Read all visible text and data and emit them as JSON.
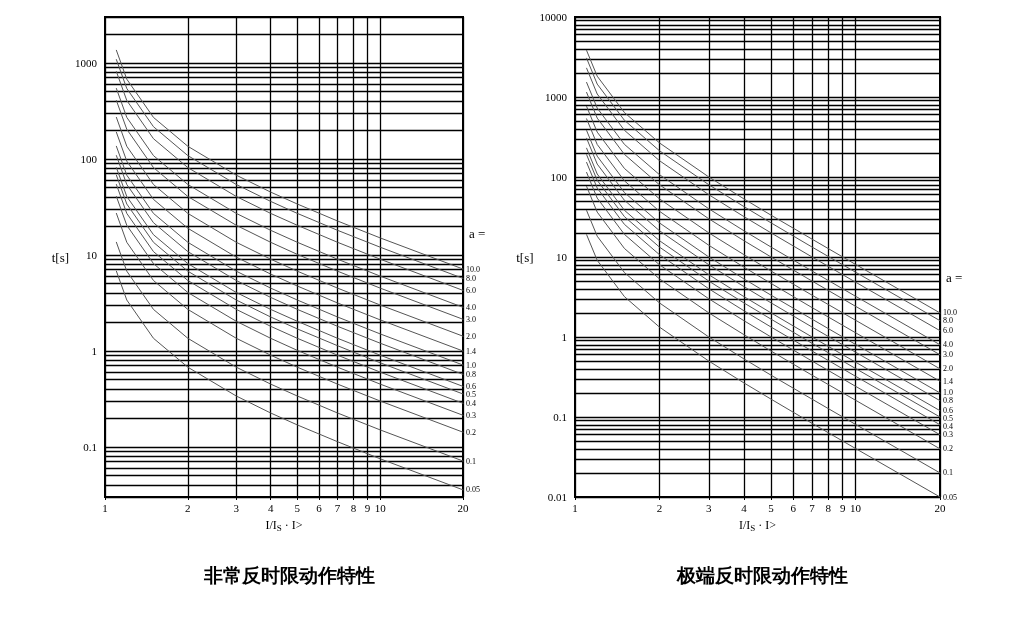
{
  "chart_data": [
    {
      "type": "line",
      "title": "非常反时限动作特性",
      "xlabel": "I/I$_{S}$ · I>",
      "ylabel": "t[s]",
      "legend_title": "a =",
      "log": "xy",
      "grid": true,
      "marker": "none",
      "line_style": "solid",
      "xlim": [
        1,
        20
      ],
      "ylim": [
        0.03,
        3000
      ],
      "xticks": [
        1,
        2,
        3,
        4,
        5,
        6,
        7,
        8,
        9,
        10,
        20
      ],
      "yticks": [
        {
          "value": 0.03,
          "label": null
        },
        {
          "value": 0.04,
          "label": null
        },
        {
          "value": 0.05,
          "label": null
        },
        {
          "value": 0.06,
          "label": null
        },
        {
          "value": 0.07,
          "label": null
        },
        {
          "value": 0.08,
          "label": null
        },
        {
          "value": 0.09,
          "label": null
        },
        {
          "value": 0.1,
          "label": "0.1"
        },
        {
          "value": 0.2,
          "label": null
        },
        {
          "value": 0.3,
          "label": null
        },
        {
          "value": 0.4,
          "label": null
        },
        {
          "value": 0.5,
          "label": null
        },
        {
          "value": 0.6,
          "label": null
        },
        {
          "value": 0.7,
          "label": null
        },
        {
          "value": 0.8,
          "label": null
        },
        {
          "value": 0.9,
          "label": null
        },
        1,
        {
          "value": 2,
          "label": null
        },
        {
          "value": 3,
          "label": null
        },
        {
          "value": 4,
          "label": null
        },
        {
          "value": 5,
          "label": null
        },
        {
          "value": 6,
          "label": null
        },
        {
          "value": 7,
          "label": null
        },
        {
          "value": 8,
          "label": null
        },
        {
          "value": 9,
          "label": null
        },
        10,
        {
          "value": 20,
          "label": null
        },
        {
          "value": 30,
          "label": null
        },
        {
          "value": 40,
          "label": null
        },
        {
          "value": 50,
          "label": null
        },
        {
          "value": 60,
          "label": null
        },
        {
          "value": 70,
          "label": null
        },
        {
          "value": 80,
          "label": null
        },
        {
          "value": 90,
          "label": null
        },
        100,
        {
          "value": 200,
          "label": null
        },
        {
          "value": 300,
          "label": null
        },
        {
          "value": 400,
          "label": null
        },
        {
          "value": 500,
          "label": null
        },
        {
          "value": 600,
          "label": null
        },
        {
          "value": 700,
          "label": null
        },
        {
          "value": 800,
          "label": null
        },
        {
          "value": 900,
          "label": null
        },
        1000,
        {
          "value": 2000,
          "label": null
        },
        {
          "value": 3000,
          "label": null
        }
      ],
      "x": [
        1.1,
        1.2,
        1.5,
        2,
        3,
        4,
        5,
        7,
        10,
        20
      ],
      "series": [
        {
          "name": "10.0",
          "color": "#555555",
          "values": [
            1350,
            675,
            270,
            135,
            67.5,
            45,
            33.8,
            22.5,
            15,
            7.11
          ]
        },
        {
          "name": "8.0",
          "color": "#555555",
          "values": [
            1080,
            540,
            216,
            108,
            54,
            36,
            27,
            18,
            12,
            5.68
          ]
        },
        {
          "name": "6.0",
          "color": "#555555",
          "values": [
            810,
            405,
            162,
            81,
            40.5,
            27,
            20.3,
            13.5,
            9,
            4.26
          ]
        },
        {
          "name": "4.0",
          "color": "#555555",
          "values": [
            540,
            270,
            108,
            54,
            27,
            18,
            13.5,
            9,
            6,
            2.84
          ]
        },
        {
          "name": "3.0",
          "color": "#555555",
          "values": [
            405,
            203,
            81,
            40.5,
            20.3,
            13.5,
            10.1,
            6.75,
            4.5,
            2.13
          ]
        },
        {
          "name": "2.0",
          "color": "#555555",
          "values": [
            270,
            135,
            54,
            27,
            13.5,
            9,
            6.75,
            4.5,
            3,
            1.42
          ]
        },
        {
          "name": "1.4",
          "color": "#555555",
          "values": [
            189,
            94.5,
            37.8,
            18.9,
            9.45,
            6.3,
            4.73,
            3.15,
            2.1,
            0.995
          ]
        },
        {
          "name": "1.0",
          "color": "#555555",
          "values": [
            135,
            67.5,
            27,
            13.5,
            6.75,
            4.5,
            3.38,
            2.25,
            1.5,
            0.711
          ]
        },
        {
          "name": "0.8",
          "color": "#555555",
          "values": [
            108,
            54,
            21.6,
            10.8,
            5.4,
            3.6,
            2.7,
            1.8,
            1.2,
            0.568
          ]
        },
        {
          "name": "0.6",
          "color": "#555555",
          "values": [
            81,
            40.5,
            16.2,
            8.1,
            4.05,
            2.7,
            2.03,
            1.35,
            0.9,
            0.426
          ]
        },
        {
          "name": "0.5",
          "color": "#555555",
          "values": [
            67.5,
            33.8,
            13.5,
            6.75,
            3.38,
            2.25,
            1.69,
            1.13,
            0.75,
            0.355
          ]
        },
        {
          "name": "0.4",
          "color": "#555555",
          "values": [
            54,
            27,
            10.8,
            5.4,
            2.7,
            1.8,
            1.35,
            0.9,
            0.6,
            0.284
          ]
        },
        {
          "name": "0.3",
          "color": "#555555",
          "values": [
            40.5,
            20.3,
            8.1,
            4.05,
            2.03,
            1.35,
            1.01,
            0.675,
            0.45,
            0.213
          ]
        },
        {
          "name": "0.2",
          "color": "#555555",
          "values": [
            27,
            13.5,
            5.4,
            2.7,
            1.35,
            0.9,
            0.675,
            0.45,
            0.3,
            0.142
          ]
        },
        {
          "name": "0.1",
          "color": "#555555",
          "values": [
            13.5,
            6.75,
            2.7,
            1.35,
            0.675,
            0.45,
            0.338,
            0.225,
            0.15,
            0.0711
          ]
        },
        {
          "name": "0.05",
          "color": "#555555",
          "values": [
            6.75,
            3.38,
            1.35,
            0.675,
            0.338,
            0.225,
            0.169,
            0.113,
            0.075,
            0.0356
          ]
        }
      ]
    },
    {
      "type": "line",
      "title": "极端反时限动作特性",
      "xlabel": "I/I$_{S}$ · I>",
      "ylabel": "t[s]",
      "legend_title": "a =",
      "log": "xy",
      "grid": true,
      "marker": "none",
      "line_style": "solid",
      "xlim": [
        1,
        20
      ],
      "ylim": [
        0.01,
        10000
      ],
      "xticks": [
        1,
        2,
        3,
        4,
        5,
        6,
        7,
        8,
        9,
        10,
        20
      ],
      "yticks": [
        {
          "value": 0.01,
          "label": "0.01"
        },
        {
          "value": 0.02,
          "label": null
        },
        {
          "value": 0.03,
          "label": null
        },
        {
          "value": 0.04,
          "label": null
        },
        {
          "value": 0.05,
          "label": null
        },
        {
          "value": 0.06,
          "label": null
        },
        {
          "value": 0.07,
          "label": null
        },
        {
          "value": 0.08,
          "label": null
        },
        {
          "value": 0.09,
          "label": null
        },
        {
          "value": 0.1,
          "label": "0.1"
        },
        {
          "value": 0.2,
          "label": null
        },
        {
          "value": 0.3,
          "label": null
        },
        {
          "value": 0.4,
          "label": null
        },
        {
          "value": 0.5,
          "label": null
        },
        {
          "value": 0.6,
          "label": null
        },
        {
          "value": 0.7,
          "label": null
        },
        {
          "value": 0.8,
          "label": null
        },
        {
          "value": 0.9,
          "label": null
        },
        1,
        {
          "value": 2,
          "label": null
        },
        {
          "value": 3,
          "label": null
        },
        {
          "value": 4,
          "label": null
        },
        {
          "value": 5,
          "label": null
        },
        {
          "value": 6,
          "label": null
        },
        {
          "value": 7,
          "label": null
        },
        {
          "value": 8,
          "label": null
        },
        {
          "value": 9,
          "label": null
        },
        10,
        {
          "value": 20,
          "label": null
        },
        {
          "value": 30,
          "label": null
        },
        {
          "value": 40,
          "label": null
        },
        {
          "value": 50,
          "label": null
        },
        {
          "value": 60,
          "label": null
        },
        {
          "value": 70,
          "label": null
        },
        {
          "value": 80,
          "label": null
        },
        {
          "value": 90,
          "label": null
        },
        100,
        {
          "value": 200,
          "label": null
        },
        {
          "value": 300,
          "label": null
        },
        {
          "value": 400,
          "label": null
        },
        {
          "value": 500,
          "label": null
        },
        {
          "value": 600,
          "label": null
        },
        {
          "value": 700,
          "label": null
        },
        {
          "value": 800,
          "label": null
        },
        {
          "value": 900,
          "label": null
        },
        1000,
        {
          "value": 2000,
          "label": null
        },
        {
          "value": 3000,
          "label": null
        },
        {
          "value": 4000,
          "label": null
        },
        {
          "value": 5000,
          "label": null
        },
        {
          "value": 6000,
          "label": null
        },
        {
          "value": 7000,
          "label": null
        },
        {
          "value": 8000,
          "label": null
        },
        {
          "value": 9000,
          "label": null
        },
        10000
      ],
      "x": [
        1.1,
        1.2,
        1.5,
        2,
        3,
        4,
        5,
        7,
        10,
        20
      ],
      "series": [
        {
          "name": "10.0",
          "color": "#555555",
          "values": [
            3810,
            1820,
            640,
            267,
            100,
            53.3,
            33.3,
            16.7,
            8.08,
            2
          ]
        },
        {
          "name": "8.0",
          "color": "#555555",
          "values": [
            3050,
            1450,
            512,
            213,
            80,
            42.7,
            26.7,
            13.3,
            6.46,
            1.6
          ]
        },
        {
          "name": "6.0",
          "color": "#555555",
          "values": [
            2290,
            1090,
            384,
            160,
            60,
            32,
            20,
            10,
            4.85,
            1.2
          ]
        },
        {
          "name": "4.0",
          "color": "#555555",
          "values": [
            1520,
            727,
            256,
            107,
            40,
            21.3,
            13.3,
            6.67,
            3.23,
            0.8
          ]
        },
        {
          "name": "3.0",
          "color": "#555555",
          "values": [
            1140,
            545,
            192,
            80,
            30,
            16,
            10,
            5,
            2.42,
            0.6
          ]
        },
        {
          "name": "2.0",
          "color": "#555555",
          "values": [
            762,
            364,
            128,
            53.3,
            20,
            10.7,
            6.67,
            3.33,
            1.62,
            0.4
          ]
        },
        {
          "name": "1.4",
          "color": "#555555",
          "values": [
            533,
            255,
            89.6,
            37.3,
            14,
            7.47,
            4.67,
            2.33,
            1.13,
            0.28
          ]
        },
        {
          "name": "1.0",
          "color": "#555555",
          "values": [
            381,
            182,
            64,
            26.7,
            10,
            5.33,
            3.33,
            1.67,
            0.808,
            0.2
          ]
        },
        {
          "name": "0.8",
          "color": "#555555",
          "values": [
            305,
            145,
            51.2,
            21.3,
            8,
            4.27,
            2.67,
            1.33,
            0.646,
            0.16
          ]
        },
        {
          "name": "0.6",
          "color": "#555555",
          "values": [
            229,
            109,
            38.4,
            16,
            6,
            3.2,
            2,
            1,
            0.485,
            0.12
          ]
        },
        {
          "name": "0.5",
          "color": "#555555",
          "values": [
            190,
            90.9,
            32,
            13.3,
            5,
            2.67,
            1.67,
            0.833,
            0.404,
            0.1
          ]
        },
        {
          "name": "0.4",
          "color": "#555555",
          "values": [
            152,
            72.7,
            25.6,
            10.7,
            4,
            2.13,
            1.33,
            0.667,
            0.323,
            0.08
          ]
        },
        {
          "name": "0.3",
          "color": "#555555",
          "values": [
            114,
            54.5,
            19.2,
            8,
            3,
            1.6,
            1,
            0.5,
            0.242,
            0.06
          ]
        },
        {
          "name": "0.2",
          "color": "#555555",
          "values": [
            76.2,
            36.4,
            12.8,
            5.33,
            2,
            1.07,
            0.667,
            0.333,
            0.162,
            0.04
          ]
        },
        {
          "name": "0.1",
          "color": "#555555",
          "values": [
            38.1,
            18.2,
            6.4,
            2.67,
            1,
            0.533,
            0.333,
            0.167,
            0.0808,
            0.02
          ]
        },
        {
          "name": "0.05",
          "color": "#555555",
          "values": [
            19,
            9.09,
            3.2,
            1.33,
            0.5,
            0.267,
            0.167,
            0.0833,
            0.0404,
            0.01
          ]
        }
      ]
    }
  ]
}
